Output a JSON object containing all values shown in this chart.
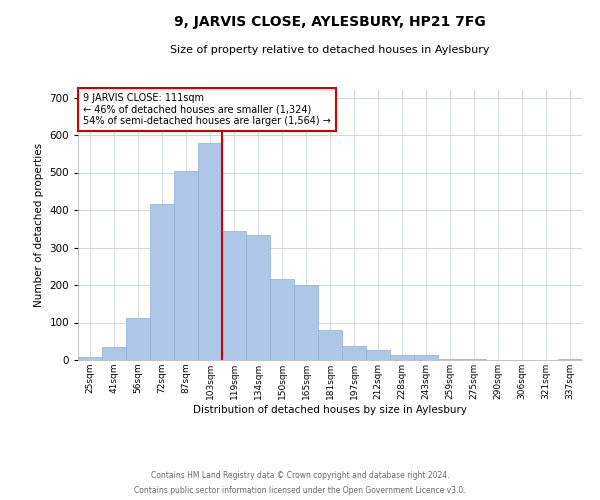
{
  "title": "9, JARVIS CLOSE, AYLESBURY, HP21 7FG",
  "subtitle": "Size of property relative to detached houses in Aylesbury",
  "xlabel": "Distribution of detached houses by size in Aylesbury",
  "ylabel": "Number of detached properties",
  "categories": [
    "25sqm",
    "41sqm",
    "56sqm",
    "72sqm",
    "87sqm",
    "103sqm",
    "119sqm",
    "134sqm",
    "150sqm",
    "165sqm",
    "181sqm",
    "197sqm",
    "212sqm",
    "228sqm",
    "243sqm",
    "259sqm",
    "275sqm",
    "290sqm",
    "306sqm",
    "321sqm",
    "337sqm"
  ],
  "values": [
    8,
    35,
    112,
    415,
    505,
    578,
    345,
    333,
    215,
    200,
    80,
    37,
    27,
    13,
    13,
    3,
    3,
    0,
    0,
    0,
    3
  ],
  "bar_color": "#aec6e8",
  "bar_edge_color": "#8ab0d8",
  "vline_color": "#cc0000",
  "annotation_text": "9 JARVIS CLOSE: 111sqm\n← 46% of detached houses are smaller (1,324)\n54% of semi-detached houses are larger (1,564) →",
  "annotation_box_color": "#ffffff",
  "annotation_box_edge_color": "#cc0000",
  "ylim": [
    0,
    720
  ],
  "yticks": [
    0,
    100,
    200,
    300,
    400,
    500,
    600,
    700
  ],
  "footer_line1": "Contains HM Land Registry data © Crown copyright and database right 2024.",
  "footer_line2": "Contains public sector information licensed under the Open Government Licence v3.0.",
  "background_color": "#ffffff",
  "grid_color": "#c8d8e8"
}
